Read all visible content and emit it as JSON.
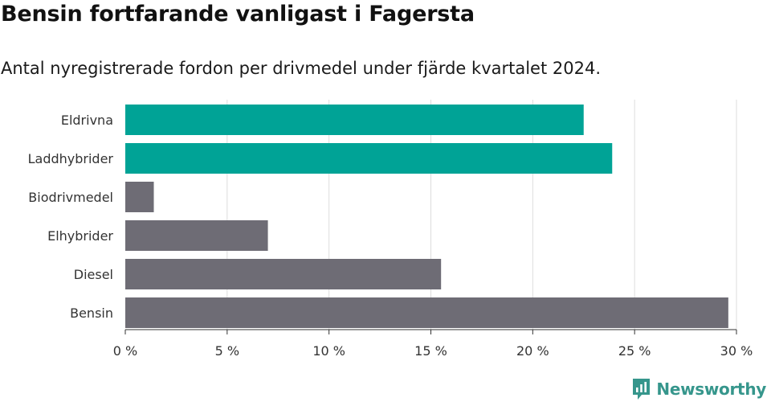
{
  "title": "Bensin fortfarande vanligast i Fagersta",
  "subtitle": "Antal nyregistrerade fordon per drivmedel under fjärde kvartalet 2024.",
  "brand": {
    "name": "Newsworthy",
    "icon": "newsworthy-logo-icon",
    "color": "#36968c"
  },
  "chart_data": {
    "type": "bar",
    "orientation": "horizontal",
    "categories": [
      "Eldrivna",
      "Laddhybrider",
      "Biodrivmedel",
      "Elhybrider",
      "Diesel",
      "Bensin"
    ],
    "values": [
      22.5,
      23.9,
      1.4,
      7.0,
      15.5,
      29.6
    ],
    "colors": [
      "#00a396",
      "#00a396",
      "#6e6c75",
      "#6e6c75",
      "#6e6c75",
      "#6e6c75"
    ],
    "xlim": [
      0,
      30
    ],
    "xticks": [
      0,
      5,
      10,
      15,
      20,
      25,
      30
    ],
    "xtick_labels": [
      "0 %",
      "5 %",
      "10 %",
      "15 %",
      "20 %",
      "25 %",
      "30 %"
    ],
    "grid": true
  }
}
